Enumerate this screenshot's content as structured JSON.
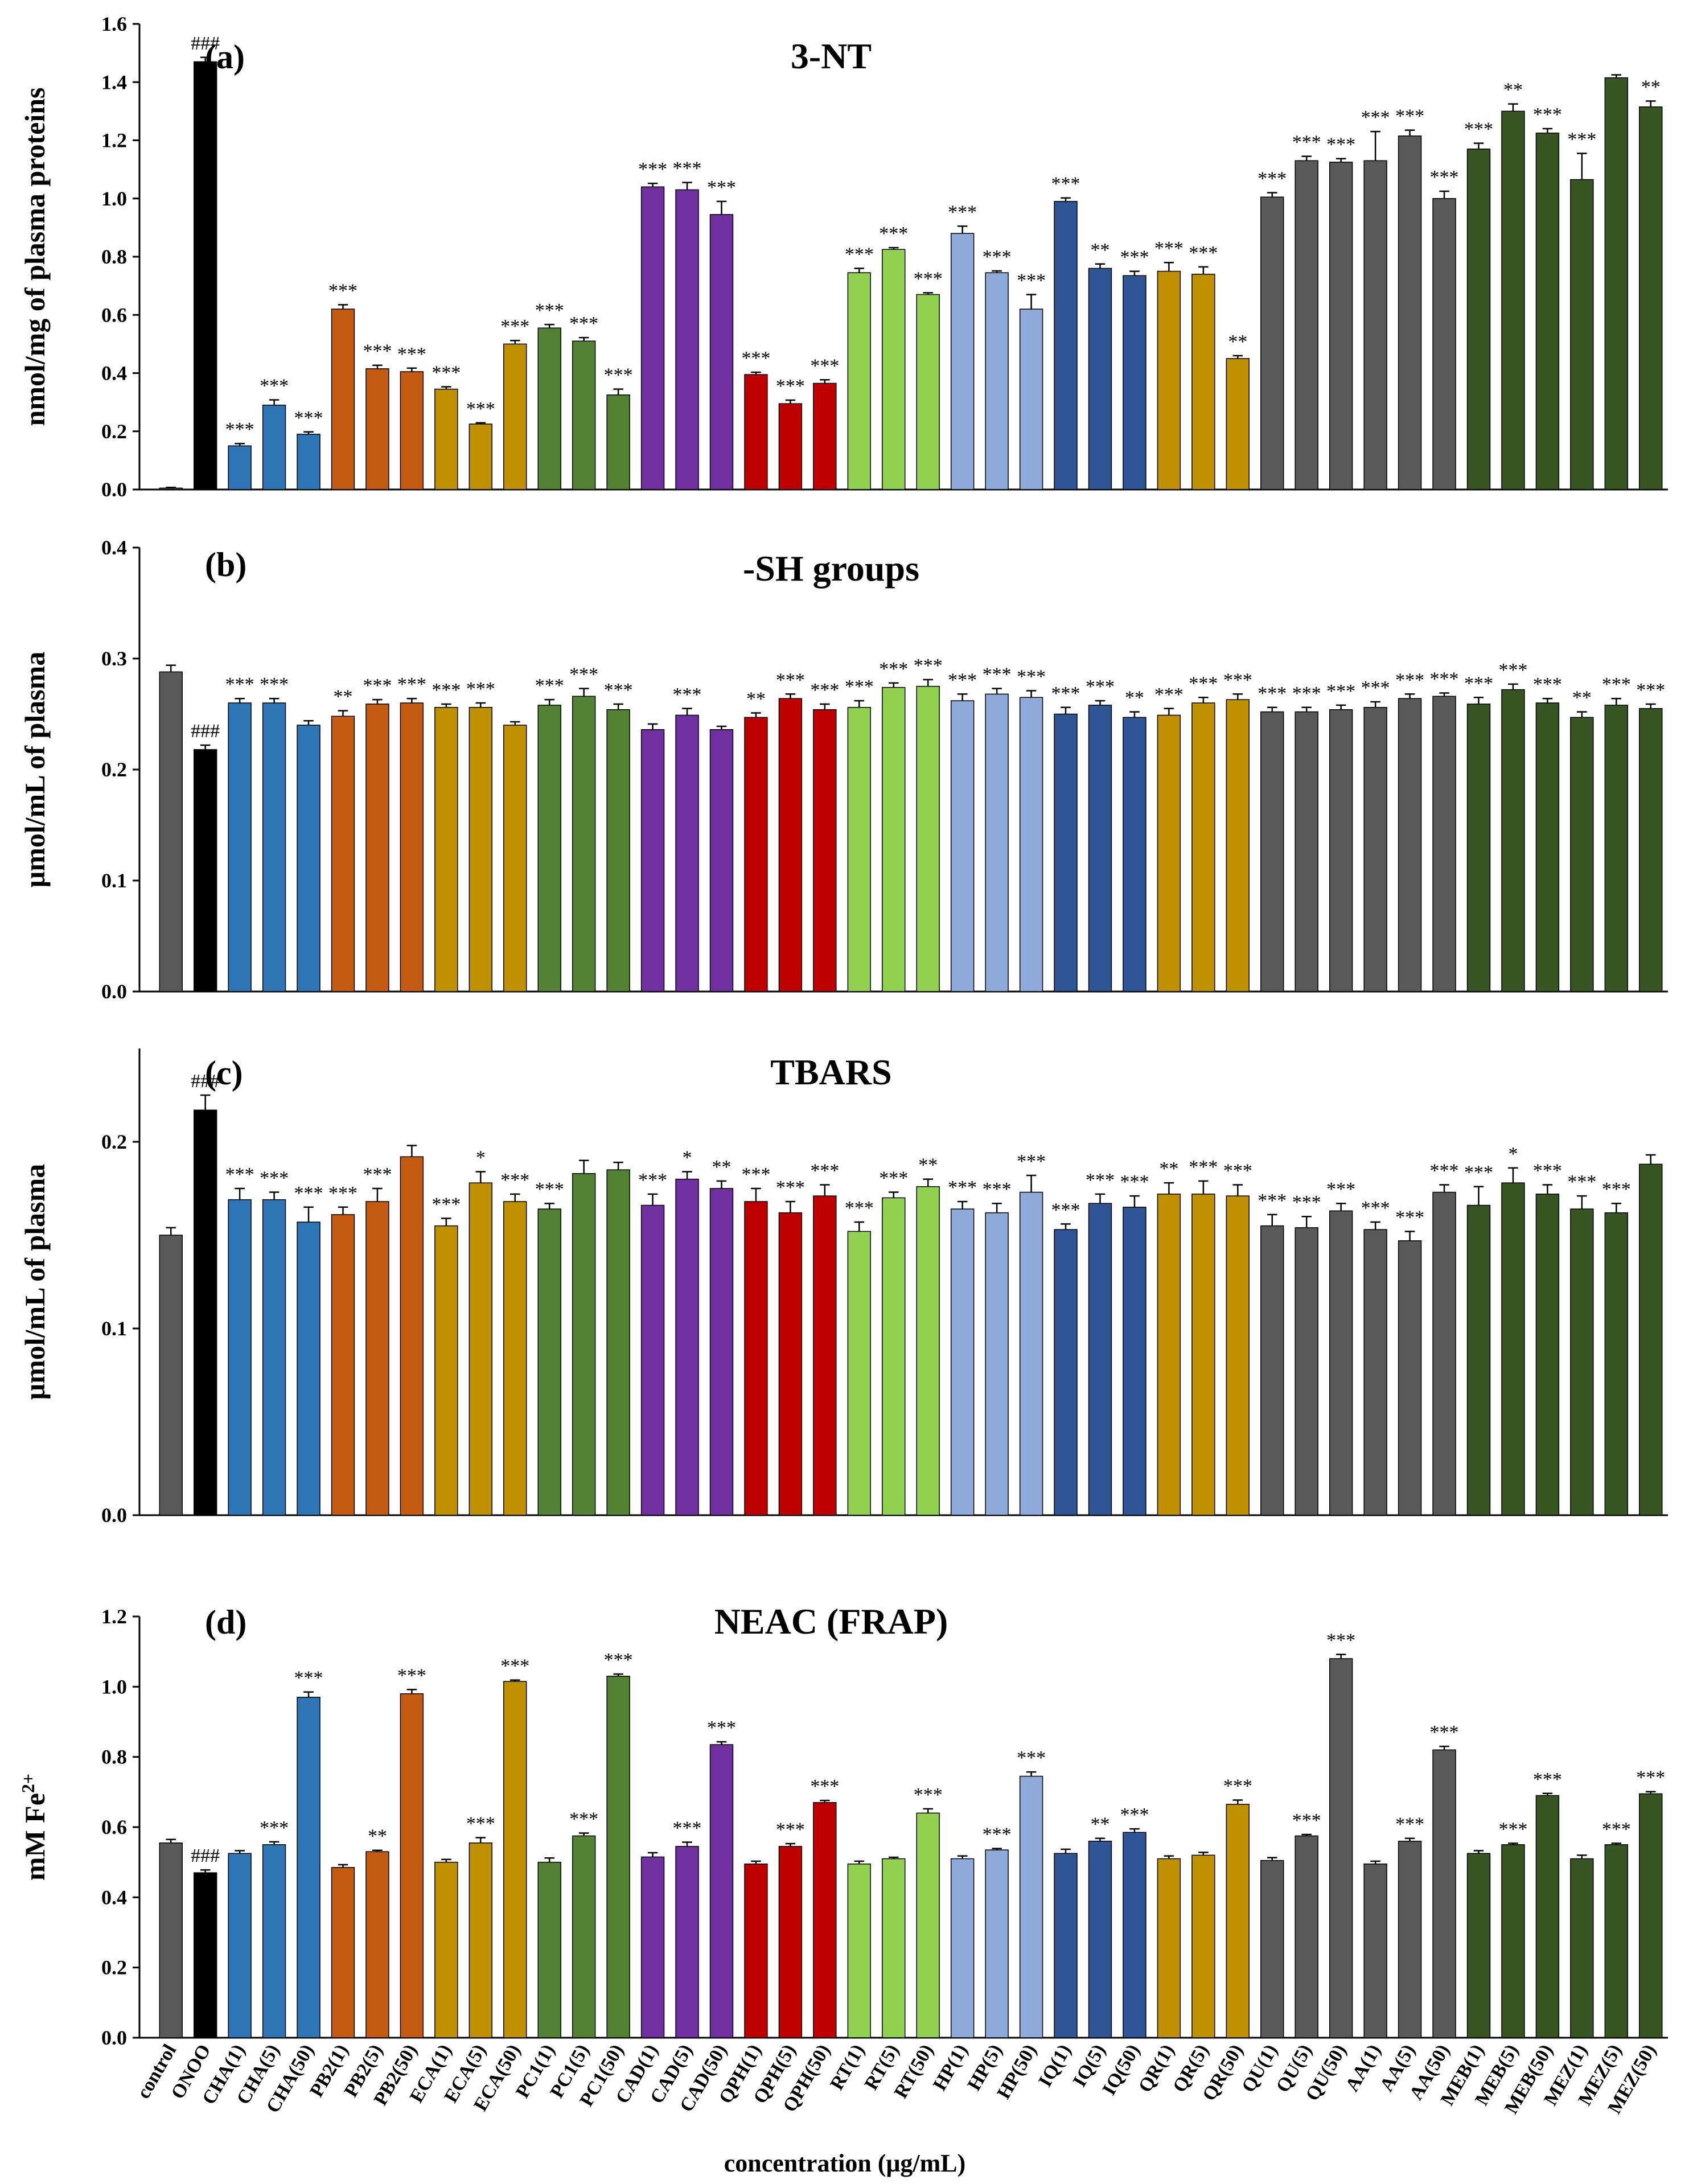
{
  "colors": {
    "control": "#595959",
    "onoo": "#000000",
    "CHA": "#2e75b6",
    "PB2": "#c55a11",
    "ECA": "#bf9000",
    "PC1": "#548235",
    "CAD": "#7030a0",
    "QPH": "#c00000",
    "RT": "#92d050",
    "HP": "#8eaadb",
    "IQ": "#2f5597",
    "QR": "#bf9000",
    "QU": "#595959",
    "AA": "#595959",
    "MEB": "#375623",
    "MEZ": "#375623"
  },
  "figure": {
    "xlabel": "concentration (μg/mL)",
    "categories": [
      "control",
      "ONOO",
      "CHA(1)",
      "CHA(5)",
      "CHA(50)",
      "PB2(1)",
      "PB2(5)",
      "PB2(50)",
      "ECA(1)",
      "ECA(5)",
      "ECA(50)",
      "PC1(1)",
      "PC1(5)",
      "PC1(50)",
      "CAD(1)",
      "CAD(5)",
      "CAD(50)",
      "QPH(1)",
      "QPH(5)",
      "QPH(50)",
      "RT(1)",
      "RT(5)",
      "RT(50)",
      "HP(1)",
      "HP(5)",
      "HP(50)",
      "IQ(1)",
      "IQ(5)",
      "IQ(50)",
      "QR(1)",
      "QR(5)",
      "QR(50)",
      "QU(1)",
      "QU(5)",
      "QU(50)",
      "AA(1)",
      "AA(5)",
      "AA(50)",
      "MEB(1)",
      "MEB(5)",
      "MEB(50)",
      "MEZ(1)",
      "MEZ(5)",
      "MEZ(50)"
    ],
    "groups": [
      "control",
      "onoo",
      "CHA",
      "CHA",
      "CHA",
      "PB2",
      "PB2",
      "PB2",
      "ECA",
      "ECA",
      "ECA",
      "PC1",
      "PC1",
      "PC1",
      "CAD",
      "CAD",
      "CAD",
      "QPH",
      "QPH",
      "QPH",
      "RT",
      "RT",
      "RT",
      "HP",
      "HP",
      "HP",
      "IQ",
      "IQ",
      "IQ",
      "QR",
      "QR",
      "QR",
      "QU",
      "QU",
      "QU",
      "AA",
      "AA",
      "AA",
      "MEB",
      "MEB",
      "MEB",
      "MEZ",
      "MEZ",
      "MEZ"
    ]
  },
  "chart_data": [
    {
      "type": "bar",
      "panel": "(a)",
      "title": "3-NT",
      "ylabel": "nmol/mg of plasma proteins",
      "ylim": [
        0,
        1.6
      ],
      "yticks": [
        "0.0",
        "0.2",
        "0.4",
        "0.6",
        "0.8",
        "1.0",
        "1.2",
        "1.4",
        "1.6"
      ],
      "values": [
        0.005,
        1.47,
        0.15,
        0.29,
        0.19,
        0.62,
        0.415,
        0.405,
        0.345,
        0.225,
        0.5,
        0.555,
        0.51,
        0.325,
        1.04,
        1.03,
        0.945,
        0.395,
        0.295,
        0.365,
        0.745,
        0.825,
        0.67,
        0.88,
        0.745,
        0.62,
        0.99,
        0.76,
        0.735,
        0.75,
        0.74,
        0.45,
        1.005,
        1.13,
        1.125,
        1.13,
        1.215,
        1.0,
        1.17,
        1.3,
        1.225,
        1.065,
        1.415,
        1.315
      ],
      "errors": [
        0.002,
        0.015,
        0.008,
        0.018,
        0.008,
        0.015,
        0.012,
        0.012,
        0.008,
        0.004,
        0.012,
        0.012,
        0.012,
        0.02,
        0.012,
        0.025,
        0.045,
        0.008,
        0.012,
        0.012,
        0.015,
        0.006,
        0.006,
        0.025,
        0.006,
        0.05,
        0.012,
        0.015,
        0.015,
        0.03,
        0.025,
        0.01,
        0.015,
        0.015,
        0.012,
        0.1,
        0.02,
        0.025,
        0.02,
        0.025,
        0.015,
        0.09,
        0.01,
        0.02
      ],
      "annotations": [
        "",
        "###",
        "***",
        "***",
        "***",
        "***",
        "***",
        "***",
        "***",
        "***",
        "***",
        "***",
        "***",
        "***",
        "***",
        "***",
        "***",
        "***",
        "***",
        "***",
        "***",
        "***",
        "***",
        "***",
        "***",
        "***",
        "***",
        "**",
        "***",
        "***",
        "***",
        "**",
        "***",
        "***",
        "***",
        "***",
        "***",
        "***",
        "***",
        "**",
        "***",
        "***",
        "",
        "**"
      ]
    },
    {
      "type": "bar",
      "panel": "(b)",
      "title": "-SH groups",
      "ylabel": "μmol/mL of plasma",
      "ylim": [
        0,
        0.4
      ],
      "yticks": [
        "0.0",
        "0.1",
        "0.2",
        "0.3",
        "0.4"
      ],
      "values": [
        0.288,
        0.218,
        0.26,
        0.26,
        0.24,
        0.248,
        0.259,
        0.26,
        0.256,
        0.256,
        0.24,
        0.258,
        0.266,
        0.254,
        0.236,
        0.249,
        0.236,
        0.247,
        0.264,
        0.254,
        0.256,
        0.274,
        0.275,
        0.262,
        0.268,
        0.265,
        0.25,
        0.258,
        0.247,
        0.249,
        0.26,
        0.263,
        0.252,
        0.252,
        0.254,
        0.256,
        0.264,
        0.266,
        0.259,
        0.272,
        0.26,
        0.247,
        0.258,
        0.255
      ],
      "errors": [
        0.006,
        0.004,
        0.004,
        0.004,
        0.004,
        0.005,
        0.004,
        0.004,
        0.003,
        0.004,
        0.003,
        0.005,
        0.007,
        0.005,
        0.005,
        0.006,
        0.003,
        0.004,
        0.004,
        0.005,
        0.006,
        0.004,
        0.006,
        0.006,
        0.005,
        0.006,
        0.006,
        0.004,
        0.005,
        0.006,
        0.005,
        0.005,
        0.004,
        0.004,
        0.004,
        0.005,
        0.004,
        0.003,
        0.006,
        0.005,
        0.004,
        0.005,
        0.006,
        0.004
      ],
      "annotations": [
        "",
        "###",
        "***",
        "***",
        "",
        "**",
        "***",
        "***",
        "***",
        "***",
        "",
        "***",
        "***",
        "***",
        "",
        "***",
        "",
        "**",
        "***",
        "***",
        "***",
        "***",
        "***",
        "***",
        "***",
        "***",
        "***",
        "***",
        "**",
        "***",
        "***",
        "***",
        "***",
        "***",
        "***",
        "***",
        "***",
        "***",
        "***",
        "***",
        "***",
        "**",
        "***",
        "***"
      ]
    },
    {
      "type": "bar",
      "panel": "(c)",
      "title": "TBARS",
      "ylabel": "μmol/mL of plasma",
      "ylim": [
        0,
        0.25
      ],
      "yticks": [
        "0.0",
        "0.1",
        "0.2"
      ],
      "values": [
        0.15,
        0.217,
        0.169,
        0.169,
        0.157,
        0.161,
        0.168,
        0.192,
        0.155,
        0.178,
        0.168,
        0.164,
        0.183,
        0.185,
        0.166,
        0.18,
        0.175,
        0.168,
        0.162,
        0.171,
        0.152,
        0.17,
        0.176,
        0.164,
        0.162,
        0.173,
        0.153,
        0.167,
        0.165,
        0.172,
        0.172,
        0.171,
        0.155,
        0.154,
        0.163,
        0.153,
        0.147,
        0.173,
        0.166,
        0.178,
        0.172,
        0.164,
        0.162,
        0.188
      ],
      "errors": [
        0.004,
        0.008,
        0.006,
        0.004,
        0.008,
        0.004,
        0.007,
        0.006,
        0.004,
        0.006,
        0.004,
        0.003,
        0.007,
        0.004,
        0.006,
        0.004,
        0.004,
        0.007,
        0.006,
        0.006,
        0.005,
        0.003,
        0.004,
        0.004,
        0.005,
        0.009,
        0.003,
        0.005,
        0.006,
        0.006,
        0.007,
        0.006,
        0.006,
        0.006,
        0.004,
        0.004,
        0.005,
        0.004,
        0.01,
        0.008,
        0.005,
        0.007,
        0.005,
        0.005
      ],
      "annotations": [
        "",
        "###",
        "***",
        "***",
        "***",
        "***",
        "***",
        "",
        "***",
        "*",
        "***",
        "***",
        "",
        "",
        "***",
        "*",
        "**",
        "***",
        "***",
        "***",
        "***",
        "***",
        "**",
        "***",
        "***",
        "***",
        "***",
        "***",
        "***",
        "**",
        "***",
        "***",
        "***",
        "***",
        "***",
        "***",
        "***",
        "***",
        "***",
        "*",
        "***",
        "***",
        "***",
        ""
      ]
    },
    {
      "type": "bar",
      "panel": "(d)",
      "title": "NEAC (FRAP)",
      "ylabel": "mM Fe2+",
      "ylim": [
        0,
        1.2
      ],
      "yticks": [
        "0.0",
        "0.2",
        "0.4",
        "0.6",
        "0.8",
        "1.0",
        "1.2"
      ],
      "values": [
        0.555,
        0.47,
        0.525,
        0.55,
        0.97,
        0.485,
        0.53,
        0.98,
        0.5,
        0.555,
        1.015,
        0.5,
        0.575,
        1.03,
        0.515,
        0.545,
        0.835,
        0.495,
        0.545,
        0.67,
        0.495,
        0.51,
        0.64,
        0.51,
        0.535,
        0.745,
        0.525,
        0.56,
        0.585,
        0.51,
        0.52,
        0.665,
        0.505,
        0.575,
        1.08,
        0.495,
        0.56,
        0.82,
        0.525,
        0.55,
        0.69,
        0.51,
        0.55,
        0.695
      ],
      "errors": [
        0.01,
        0.008,
        0.008,
        0.008,
        0.015,
        0.008,
        0.004,
        0.012,
        0.008,
        0.015,
        0.004,
        0.012,
        0.008,
        0.006,
        0.012,
        0.012,
        0.008,
        0.008,
        0.008,
        0.006,
        0.008,
        0.004,
        0.012,
        0.008,
        0.004,
        0.012,
        0.012,
        0.008,
        0.01,
        0.008,
        0.008,
        0.012,
        0.008,
        0.004,
        0.012,
        0.008,
        0.008,
        0.01,
        0.008,
        0.004,
        0.006,
        0.01,
        0.004,
        0.006
      ],
      "annotations": [
        "",
        "###",
        "",
        "***",
        "***",
        "",
        "**",
        "***",
        "",
        "***",
        "***",
        "",
        "***",
        "***",
        "",
        "***",
        "***",
        "",
        "***",
        "***",
        "",
        "",
        "***",
        "",
        "***",
        "***",
        "",
        "**",
        "***",
        "",
        "",
        "***",
        "",
        "***",
        "***",
        "",
        "***",
        "***",
        "",
        "***",
        "***",
        "",
        "***",
        "***"
      ]
    }
  ],
  "ylabel_d_main": "mM Fe",
  "ylabel_d_sup": "2+"
}
